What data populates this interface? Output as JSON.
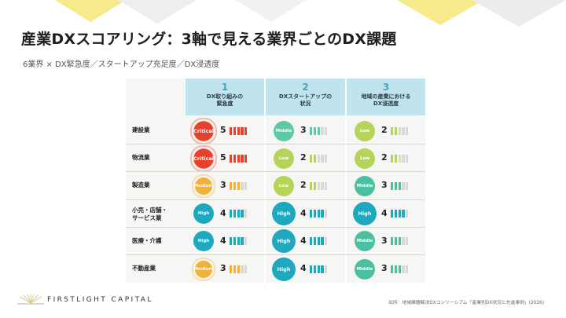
{
  "slide": {
    "title": "産業DXスコアリング：3軸で見える業界ごとのDX課題",
    "subtitle": "6業界 × DX緊急度／スタートアップ充足度／DX浸透度",
    "source": "出所：地域課題解決DXコンソーシアム「産業別DX状況と先進事例」(2026)",
    "logo_text": "FIRSTLIGHT CAPITAL"
  },
  "colors": {
    "critical": "#e8402a",
    "medium": "#f2b23a",
    "high": "#1fa9bf",
    "low": "#b7d45a",
    "middle_c2": "#5ec9a2",
    "middle_c3": "#4bbf9f",
    "header_bg": "#bfe4ee",
    "accent_yellow": "#f6ea8a"
  },
  "table": {
    "columns": [
      {
        "number": "1",
        "label": "DX取り組みの\n緊急度"
      },
      {
        "number": "2",
        "label": "DXスタートアップの\n状況"
      },
      {
        "number": "3",
        "label": "地域の産業における\nDX浸透度"
      }
    ],
    "rows": [
      {
        "name": "建設業",
        "cells": [
          {
            "level": "Critical",
            "score": "5"
          },
          {
            "level": "Middle",
            "score": "3"
          },
          {
            "level": "Low",
            "score": "2"
          }
        ]
      },
      {
        "name": "物流業",
        "cells": [
          {
            "level": "Critical",
            "score": "5"
          },
          {
            "level": "Low",
            "score": "2"
          },
          {
            "level": "Low",
            "score": "2"
          }
        ]
      },
      {
        "name": "製造業",
        "cells": [
          {
            "level": "Medium",
            "score": "3"
          },
          {
            "level": "Low",
            "score": "2"
          },
          {
            "level": "Middle",
            "score": "3"
          }
        ]
      },
      {
        "name": "小売・店舗・\nサービス業",
        "cells": [
          {
            "level": "High",
            "score": "4"
          },
          {
            "level": "High",
            "score": "4"
          },
          {
            "level": "High",
            "score": "4"
          }
        ]
      },
      {
        "name": "医療・介護",
        "cells": [
          {
            "level": "High",
            "score": "4"
          },
          {
            "level": "High",
            "score": "4"
          },
          {
            "level": "Middle",
            "score": "3"
          }
        ]
      },
      {
        "name": "不動産業",
        "cells": [
          {
            "level": "Medium",
            "score": "3"
          },
          {
            "level": "High",
            "score": "4"
          },
          {
            "level": "Middle",
            "score": "3"
          }
        ]
      }
    ]
  }
}
